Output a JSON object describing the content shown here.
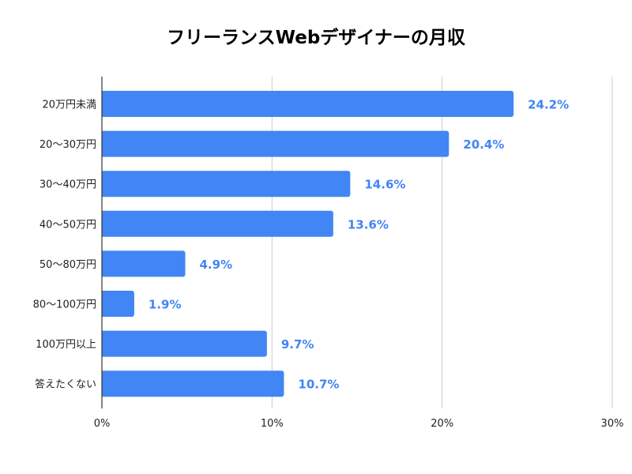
{
  "chart_data": {
    "type": "bar",
    "orientation": "horizontal",
    "title": "フリーランスWebデザイナーの月収",
    "xlabel": "",
    "ylabel": "",
    "categories": [
      "20万円未満",
      "20〜30万円",
      "30〜40万円",
      "40〜50万円",
      "50〜80万円",
      "80〜100万円",
      "100万円以上",
      "答えたくない"
    ],
    "values": [
      24.2,
      20.4,
      14.6,
      13.6,
      4.9,
      1.9,
      9.7,
      10.7
    ],
    "data_labels": [
      "24.2%",
      "20.4%",
      "14.6%",
      "13.6%",
      "4.9%",
      "1.9%",
      "9.7%",
      "10.7%"
    ],
    "xlim": [
      0,
      30
    ],
    "x_ticks": [
      0,
      10,
      20,
      30
    ],
    "x_tick_labels": [
      "0%",
      "10%",
      "20%",
      "30%"
    ],
    "grid": true,
    "bar_color": "#4285f4",
    "label_color": "#4285f4"
  }
}
